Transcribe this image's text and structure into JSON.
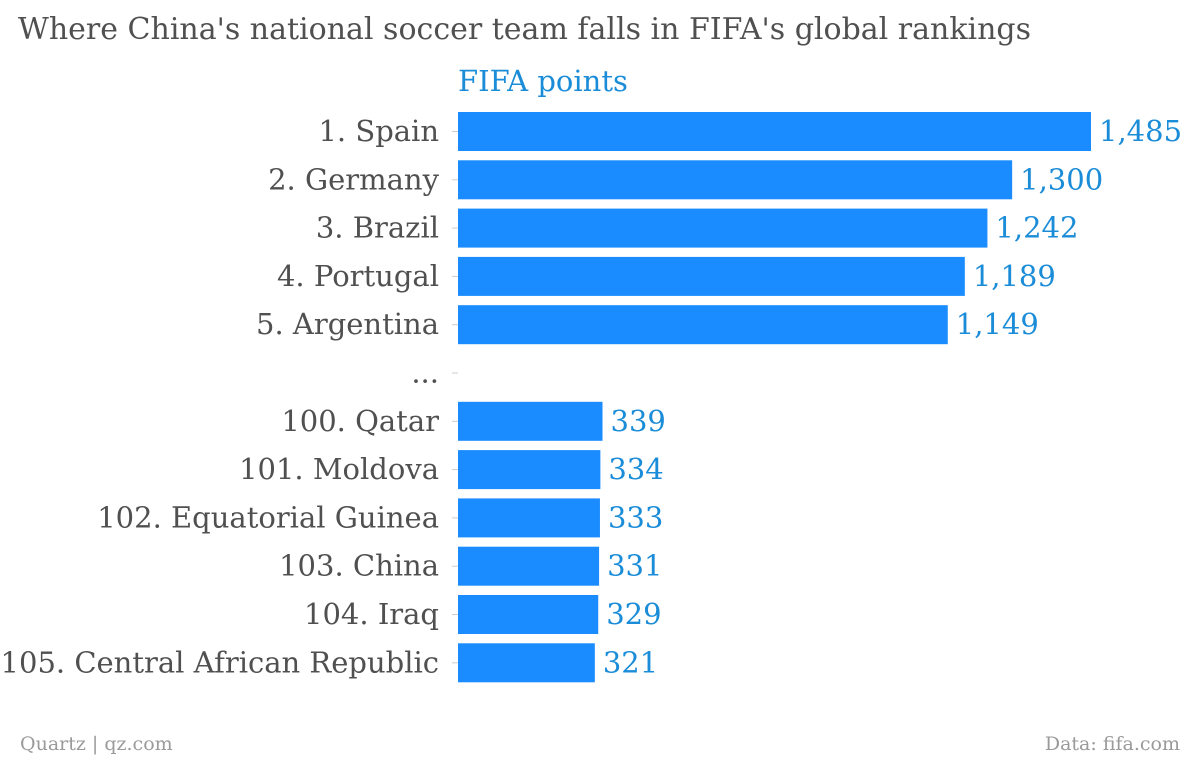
{
  "chart_data": {
    "type": "bar",
    "orientation": "horizontal",
    "title": "Where China's national soccer team falls in FIFA's global rankings",
    "series": [
      {
        "name": "FIFA points",
        "color": "#1a8cff"
      }
    ],
    "categories": [
      "1. Spain",
      "2. Germany",
      "3. Brazil",
      "4. Portugal",
      "5. Argentina",
      "...",
      "100. Qatar",
      "101. Moldova",
      "102. Equatorial Guinea",
      "103. China",
      "104. Iraq",
      "105. Central African Republic"
    ],
    "values": [
      1485,
      1300,
      1242,
      1189,
      1149,
      null,
      339,
      334,
      333,
      331,
      329,
      321
    ],
    "value_labels": [
      "1,485",
      "1,300",
      "1,242",
      "1,189",
      "1,149",
      "",
      "339",
      "334",
      "333",
      "331",
      "329",
      "321"
    ],
    "xlim": [
      0,
      1485
    ],
    "grid": false,
    "legend": "none"
  },
  "footer": {
    "source_left": "Quartz | qz.com",
    "source_right": "Data: fifa.com"
  }
}
